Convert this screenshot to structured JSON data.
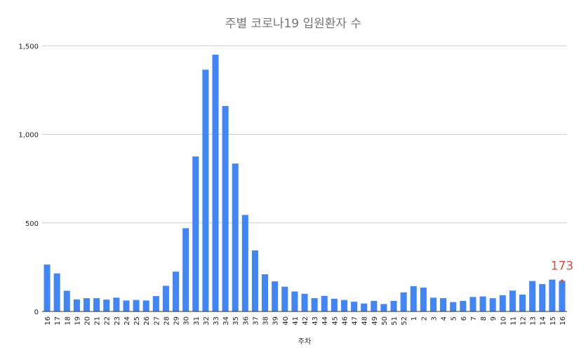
{
  "chart_data": {
    "type": "bar",
    "title": "주별 코로나19 입원환자 수",
    "xlabel": "주차",
    "ylabel": "",
    "ylim": [
      0,
      1600
    ],
    "y_ticks": [
      0,
      500,
      1000,
      1500
    ],
    "y_tick_labels": [
      "0",
      "500",
      "1,000",
      "1,500"
    ],
    "grid": true,
    "bar_color": "#4285f4",
    "callout_color": "#e0483e",
    "categories": [
      "16",
      "17",
      "18",
      "19",
      "20",
      "21",
      "22",
      "23",
      "24",
      "25",
      "26",
      "27",
      "28",
      "29",
      "30",
      "31",
      "32",
      "33",
      "34",
      "35",
      "36",
      "37",
      "38",
      "39",
      "40",
      "41",
      "42",
      "43",
      "44",
      "45",
      "46",
      "47",
      "48",
      "49",
      "50",
      "51",
      "52",
      "1",
      "2",
      "3",
      "4",
      "5",
      "6",
      "7",
      "8",
      "9",
      "10",
      "11",
      "12",
      "13",
      "14",
      "15",
      "16"
    ],
    "values": [
      265,
      215,
      117,
      68,
      75,
      75,
      67,
      78,
      62,
      65,
      62,
      87,
      145,
      225,
      470,
      875,
      1365,
      1450,
      1160,
      835,
      545,
      345,
      210,
      170,
      140,
      113,
      100,
      75,
      88,
      72,
      65,
      55,
      45,
      60,
      42,
      60,
      108,
      143,
      135,
      78,
      75,
      53,
      60,
      82,
      85,
      75,
      92,
      118,
      95,
      172,
      155,
      180,
      173
    ],
    "annotations": [
      {
        "category_index": 52,
        "text": "173"
      }
    ]
  }
}
